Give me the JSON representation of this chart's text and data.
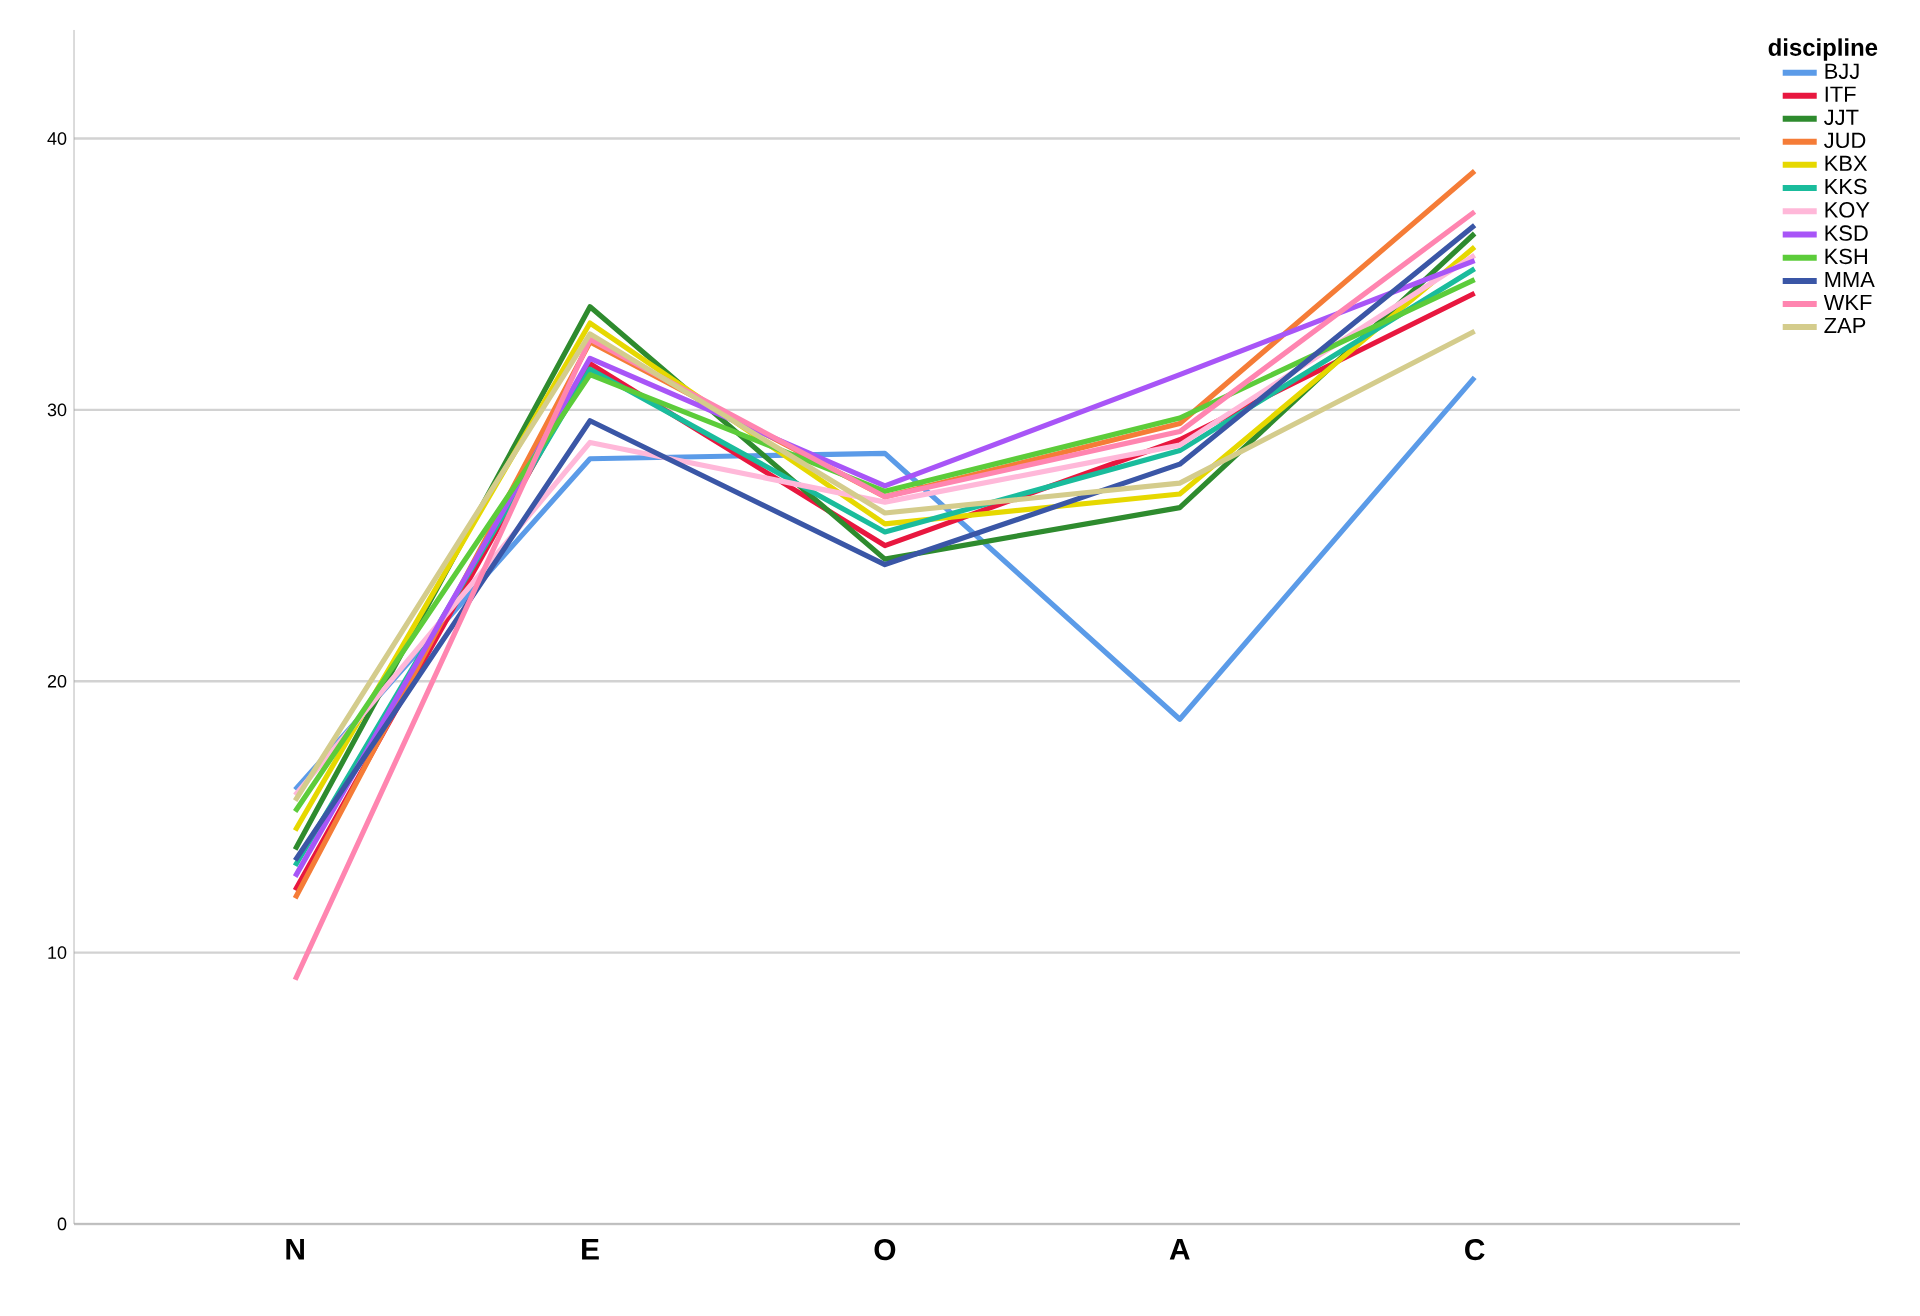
{
  "chart_data": {
    "type": "line",
    "legend_title": "discipline",
    "categories": [
      "N",
      "E",
      "O",
      "A",
      "C"
    ],
    "ylim": [
      0,
      44
    ],
    "yticks": [
      0,
      10,
      20,
      30,
      40
    ],
    "grid": "y",
    "legend": "right",
    "marker": "none",
    "line_style": "solid",
    "series": [
      {
        "name": "BJJ",
        "color": "#5b9be8",
        "values": [
          16.0,
          28.2,
          28.4,
          18.6,
          31.2
        ]
      },
      {
        "name": "ITF",
        "color": "#e8173f",
        "values": [
          12.3,
          31.7,
          25.0,
          28.9,
          34.3
        ]
      },
      {
        "name": "JJT",
        "color": "#2e8b2e",
        "values": [
          13.8,
          33.8,
          24.5,
          26.4,
          36.5
        ]
      },
      {
        "name": "JUD",
        "color": "#f57c37",
        "values": [
          12.0,
          32.5,
          26.8,
          29.5,
          38.8
        ]
      },
      {
        "name": "KBX",
        "color": "#e6d800",
        "values": [
          14.5,
          33.2,
          25.8,
          26.9,
          36.0
        ]
      },
      {
        "name": "KKS",
        "color": "#1abc9c",
        "values": [
          13.2,
          31.5,
          25.5,
          28.5,
          35.2
        ]
      },
      {
        "name": "KOY",
        "color": "#ffb8d9",
        "values": [
          15.8,
          28.8,
          26.6,
          28.7,
          35.7
        ]
      },
      {
        "name": "KSD",
        "color": "#a855f7",
        "values": [
          12.8,
          31.9,
          27.2,
          31.3,
          35.5
        ]
      },
      {
        "name": "KSH",
        "color": "#5ccc3a",
        "values": [
          15.2,
          31.3,
          27.0,
          29.7,
          34.8
        ]
      },
      {
        "name": "MMA",
        "color": "#3a56a6",
        "values": [
          13.4,
          29.6,
          24.3,
          28.0,
          36.8
        ]
      },
      {
        "name": "WKF",
        "color": "#ff85b0",
        "values": [
          9.0,
          32.6,
          26.8,
          29.2,
          37.3
        ]
      },
      {
        "name": "ZAP",
        "color": "#d4cc8c",
        "values": [
          15.6,
          32.8,
          26.2,
          27.3,
          32.9
        ]
      }
    ]
  }
}
